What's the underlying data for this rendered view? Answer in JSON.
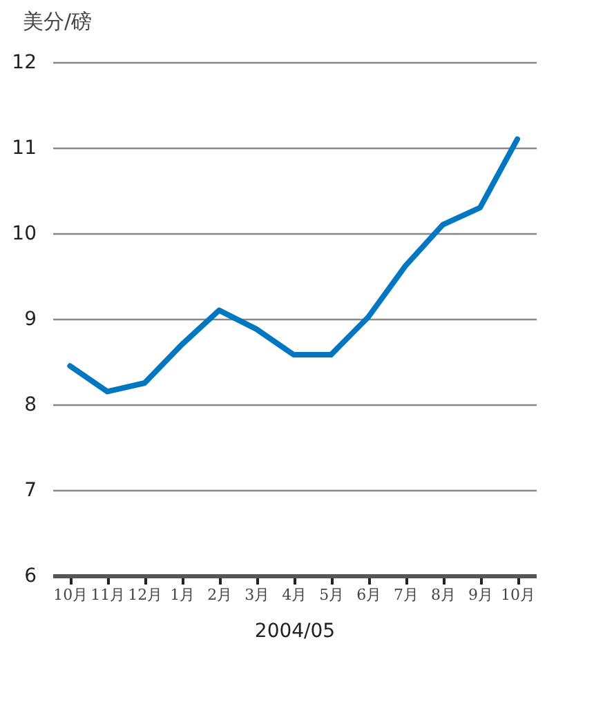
{
  "chart_data": {
    "type": "line",
    "xlabel": "2004/05",
    "ylabel": "美分/磅",
    "categories": [
      "10月",
      "11月",
      "12月",
      "1月",
      "2月",
      "3月",
      "4月",
      "5月",
      "6月",
      "7月",
      "8月",
      "9月",
      "10月"
    ],
    "series": [
      {
        "color": "#0077c0",
        "values": [
          8.45,
          8.15,
          8.25,
          8.7,
          9.1,
          8.88,
          8.58,
          8.58,
          9.02,
          9.62,
          10.1,
          10.3,
          11.1
        ]
      }
    ],
    "ylim": [
      6,
      12
    ],
    "yticks": [
      6,
      7,
      8,
      9,
      10,
      11,
      12
    ],
    "grid": "y",
    "marker": "none",
    "line_style": "solid"
  }
}
